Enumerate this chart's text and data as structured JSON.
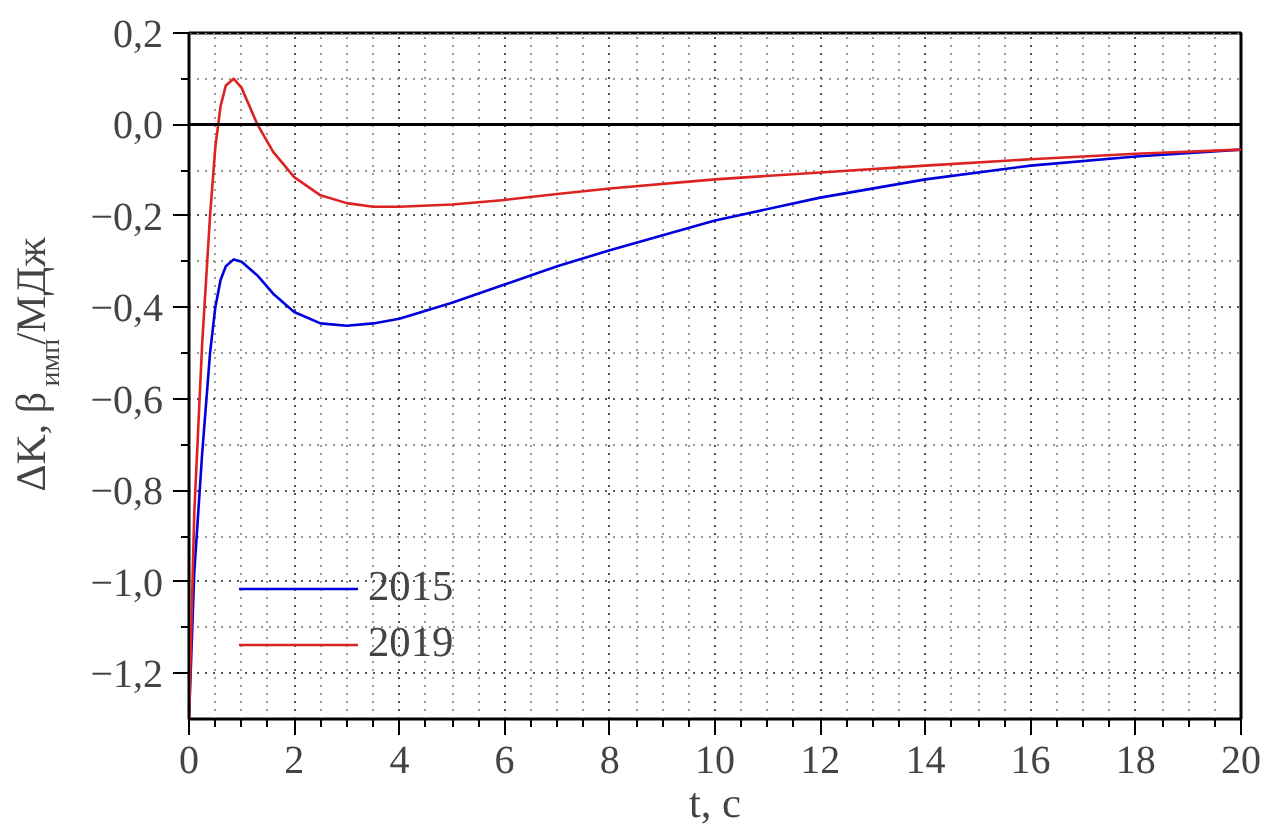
{
  "chart_data": {
    "type": "line",
    "xlabel": "t, с",
    "ylabel": "ΔK, β$_{имп}$/МДж",
    "x": [
      0,
      0.1,
      0.25,
      0.4,
      0.5,
      0.6,
      0.7,
      0.85,
      1.0,
      1.3,
      1.6,
      2.0,
      2.5,
      3.0,
      3.5,
      4.0,
      5.0,
      6.0,
      7.0,
      8.0,
      10.0,
      12.0,
      14.0,
      16.0,
      18.0,
      20.0
    ],
    "series": [
      {
        "name": "2015",
        "color": "#0000dd",
        "values": [
          -1.3,
          -0.98,
          -0.72,
          -0.5,
          -0.4,
          -0.34,
          -0.31,
          -0.295,
          -0.3,
          -0.33,
          -0.37,
          -0.41,
          -0.435,
          -0.44,
          -0.435,
          -0.425,
          -0.39,
          -0.35,
          -0.31,
          -0.275,
          -0.21,
          -0.16,
          -0.12,
          -0.09,
          -0.07,
          -0.055
        ]
      },
      {
        "name": "2019",
        "color": "#dd2222",
        "values": [
          -1.3,
          -0.85,
          -0.48,
          -0.2,
          -0.05,
          0.04,
          0.085,
          0.1,
          0.08,
          0.0,
          -0.06,
          -0.115,
          -0.155,
          -0.172,
          -0.18,
          -0.18,
          -0.175,
          -0.165,
          -0.152,
          -0.14,
          -0.12,
          -0.105,
          -0.09,
          -0.076,
          -0.064,
          -0.055
        ]
      }
    ],
    "xlim": [
      0,
      20
    ],
    "ylim": [
      -1.3,
      0.2
    ],
    "xticks": [
      0,
      2,
      4,
      6,
      8,
      10,
      12,
      14,
      16,
      18,
      20
    ],
    "yticks": [
      {
        "value": -1.2,
        "label": "−1,2"
      },
      {
        "value": -1.0,
        "label": "−1,0"
      },
      {
        "value": -0.8,
        "label": "−0,8"
      },
      {
        "value": -0.6,
        "label": "−0,6"
      },
      {
        "value": -0.4,
        "label": "−0,4"
      },
      {
        "value": -0.2,
        "label": "−0,2"
      },
      {
        "value": 0.0,
        "label": "0,0"
      },
      {
        "value": 0.2,
        "label": "0,2"
      }
    ],
    "ref_lines": [
      {
        "axis": "y",
        "value": 0,
        "color": "#000000",
        "line_style": "solid"
      }
    ],
    "grid": true,
    "legend": "bottom left",
    "line_style": "solid",
    "marker": "none"
  }
}
